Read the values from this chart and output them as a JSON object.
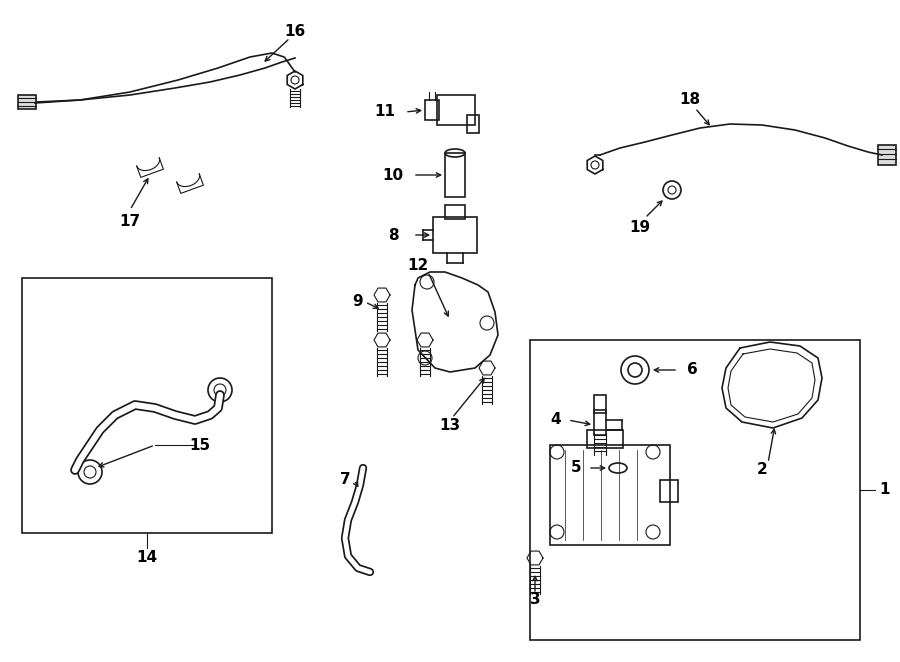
{
  "bg_color": "#ffffff",
  "line_color": "#1a1a1a",
  "fig_width": 9.0,
  "fig_height": 6.62,
  "dpi": 100
}
